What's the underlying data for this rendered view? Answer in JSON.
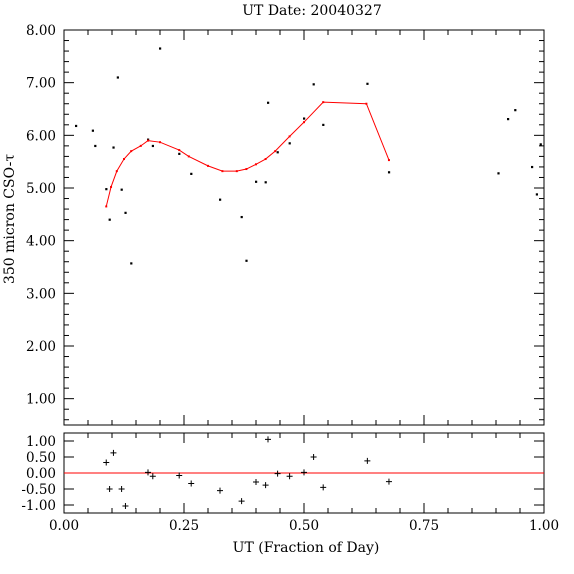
{
  "chart_data": [
    {
      "type": "scatter",
      "title": "UT Date: 20040327",
      "xlabel": "",
      "ylabel": "350 micron CSO-τ",
      "xlim": [
        0.0,
        1.0
      ],
      "ylim": [
        0.5,
        8.0
      ],
      "yticks": [
        "1.00",
        "2.00",
        "3.00",
        "4.00",
        "5.00",
        "6.00",
        "7.00",
        "8.00"
      ],
      "grid": false,
      "series": [
        {
          "type": "scatter",
          "x": [
            0.025,
            0.06,
            0.065,
            0.088,
            0.095,
            0.103,
            0.112,
            0.12,
            0.128,
            0.14,
            0.175,
            0.185,
            0.2,
            0.24,
            0.265,
            0.325,
            0.37,
            0.38,
            0.4,
            0.42,
            0.425,
            0.445,
            0.47,
            0.5,
            0.52,
            0.54,
            0.632,
            0.677,
            0.905,
            0.925,
            0.94,
            0.975,
            0.985,
            0.993
          ],
          "y": [
            6.18,
            6.09,
            5.8,
            4.98,
            4.4,
            5.77,
            7.1,
            4.97,
            4.53,
            3.57,
            5.92,
            5.8,
            7.65,
            5.65,
            5.27,
            4.78,
            4.45,
            3.62,
            5.12,
            5.11,
            6.62,
            5.68,
            5.85,
            6.32,
            6.97,
            6.2,
            6.98,
            5.3,
            5.28,
            6.31,
            6.48,
            5.4,
            4.88,
            5.83
          ]
        },
        {
          "type": "line",
          "color": "#ff0000",
          "x": [
            0.088,
            0.098,
            0.11,
            0.125,
            0.14,
            0.16,
            0.175,
            0.2,
            0.24,
            0.26,
            0.3,
            0.33,
            0.36,
            0.38,
            0.4,
            0.42,
            0.44,
            0.47,
            0.5,
            0.54,
            0.63,
            0.677
          ],
          "y": [
            4.65,
            5.02,
            5.32,
            5.55,
            5.7,
            5.8,
            5.9,
            5.87,
            5.72,
            5.6,
            5.42,
            5.32,
            5.32,
            5.36,
            5.45,
            5.55,
            5.7,
            5.98,
            6.25,
            6.63,
            6.6,
            5.53
          ]
        }
      ]
    },
    {
      "type": "scatter",
      "title": "",
      "xlabel": "UT (Fraction of Day)",
      "ylabel": "",
      "xlim": [
        0.0,
        1.0
      ],
      "ylim": [
        -1.25,
        1.25
      ],
      "yticks": [
        "-1.00",
        "-0.50",
        "0.00",
        "0.50",
        "1.00"
      ],
      "xticks": [
        "0.00",
        "0.25",
        "0.50",
        "0.75",
        "1.00"
      ],
      "grid": false,
      "zero_line_color": "#ff0000",
      "series": [
        {
          "type": "scatter",
          "marker": "plus",
          "x": [
            0.088,
            0.095,
            0.103,
            0.12,
            0.128,
            0.175,
            0.185,
            0.24,
            0.265,
            0.325,
            0.37,
            0.4,
            0.42,
            0.425,
            0.445,
            0.47,
            0.5,
            0.52,
            0.54,
            0.632,
            0.677
          ],
          "y": [
            0.33,
            -0.5,
            0.63,
            -0.5,
            -1.03,
            0.02,
            -0.1,
            -0.08,
            -0.33,
            -0.55,
            -0.88,
            -0.28,
            -0.38,
            1.05,
            -0.02,
            -0.1,
            0.02,
            0.5,
            -0.45,
            0.38,
            -0.27
          ]
        }
      ]
    }
  ]
}
